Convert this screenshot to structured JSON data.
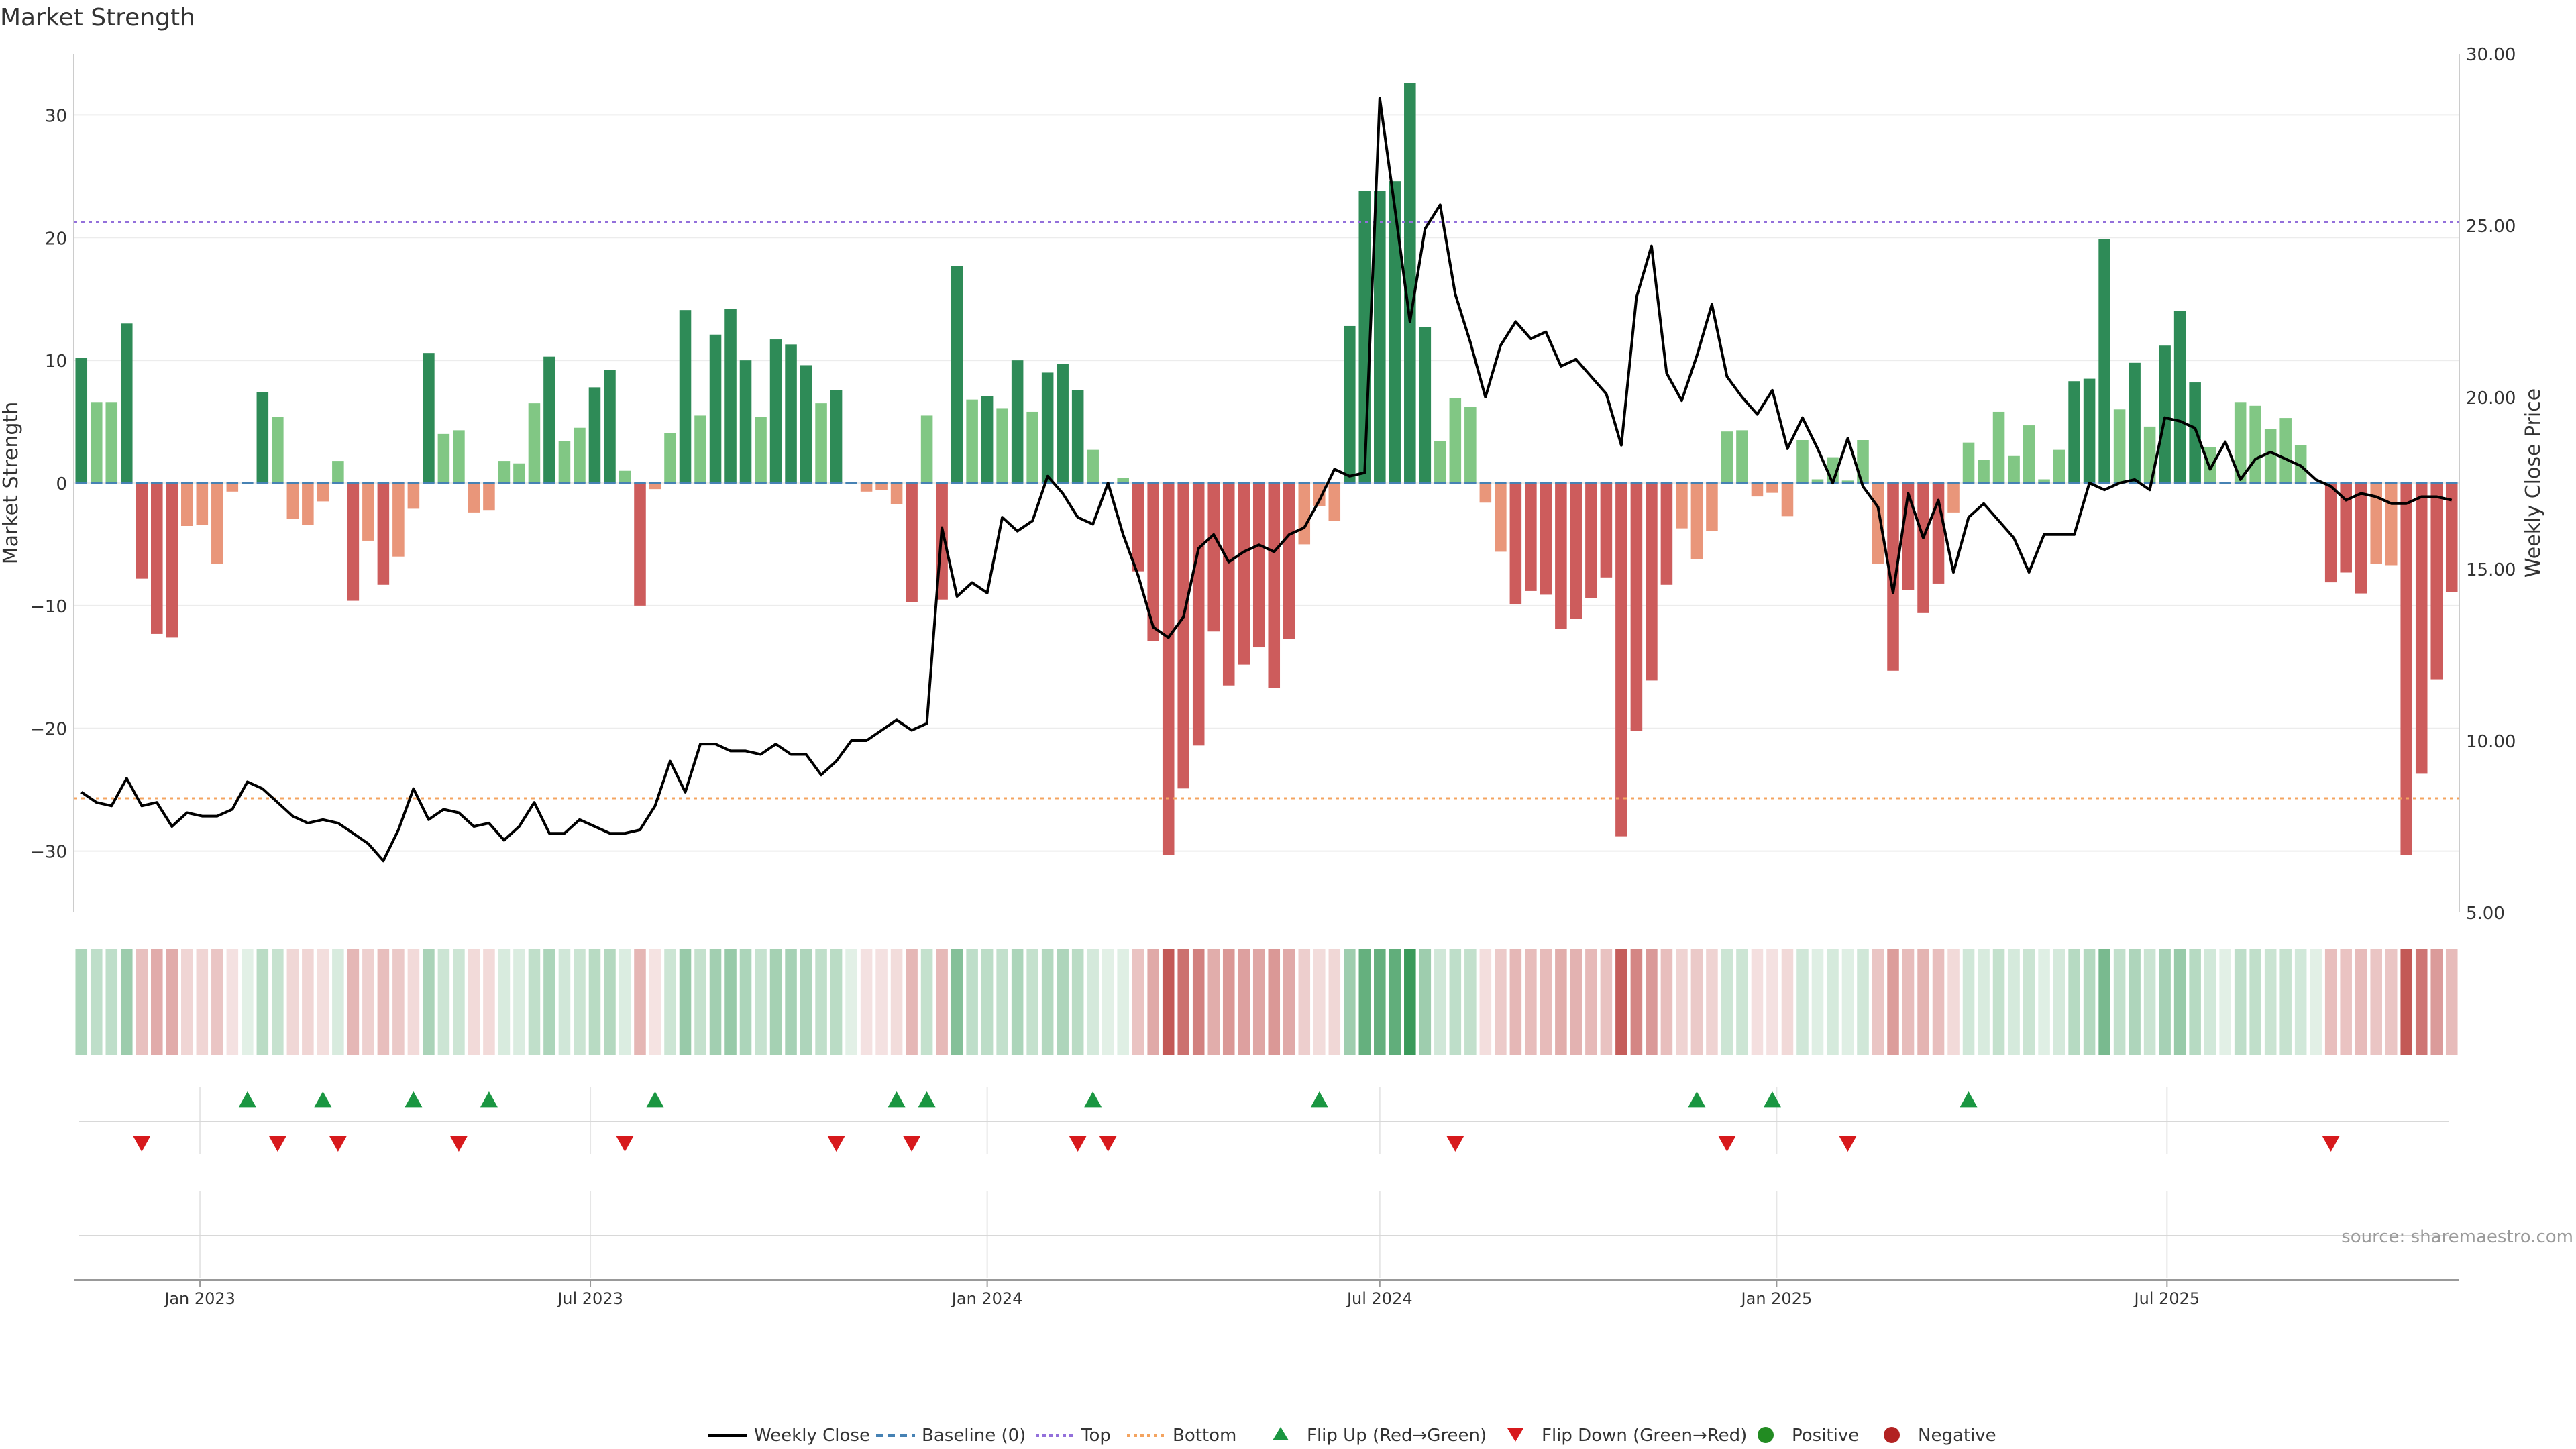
{
  "chart_data": {
    "type": "bar",
    "title": "Market Strength",
    "ylabel": "Market Strength",
    "y2label": "Weekly Close Price",
    "ylim": [
      -35,
      35
    ],
    "y2lim": [
      5,
      30
    ],
    "yticks": [
      30,
      20,
      10,
      0,
      -10,
      -20,
      -30
    ],
    "y2ticks": [
      "30.00",
      "25.00",
      "20.00",
      "15.00",
      "10.00",
      "5.00"
    ],
    "x_dates_start": "2022-11-07",
    "x_step_days": 7,
    "x_tick_labels": [
      {
        "label": "Jan 2023",
        "date": "2023-01-01"
      },
      {
        "label": "Jul 2023",
        "date": "2023-07-01"
      },
      {
        "label": "Jan 2024",
        "date": "2024-01-01"
      },
      {
        "label": "Jul 2024",
        "date": "2024-07-01"
      },
      {
        "label": "Jan 2025",
        "date": "2025-01-01"
      },
      {
        "label": "Jul 2025",
        "date": "2025-07-01"
      }
    ],
    "top_line": 21.3,
    "bottom_line": -25.7,
    "strength": [
      10.2,
      6.6,
      6.6,
      13.0,
      -7.8,
      -12.3,
      -12.6,
      -3.5,
      -3.4,
      -6.6,
      -0.7,
      0,
      7.4,
      5.4,
      -2.9,
      -3.4,
      -1.5,
      1.8,
      -9.6,
      -4.7,
      -8.3,
      -6.0,
      -2.1,
      10.6,
      4.0,
      4.3,
      -2.4,
      -2.2,
      1.8,
      1.6,
      6.5,
      10.3,
      3.4,
      4.5,
      7.8,
      9.2,
      1.0,
      -10.0,
      -0.5,
      4.1,
      14.1,
      5.5,
      12.1,
      14.2,
      10.0,
      5.4,
      11.7,
      11.3,
      9.6,
      6.5,
      7.6,
      0,
      -0.7,
      -0.6,
      -1.7,
      -9.7,
      5.5,
      -9.5,
      17.7,
      6.8,
      7.1,
      6.1,
      10.0,
      5.8,
      9.0,
      9.7,
      7.6,
      2.7,
      0,
      0.4,
      -7.2,
      -12.9,
      -30.3,
      -24.9,
      -21.4,
      -12.1,
      -16.5,
      -14.8,
      -13.4,
      -16.7,
      -12.7,
      -5.0,
      -1.9,
      -3.1,
      12.8,
      23.8,
      23.8,
      24.6,
      32.6,
      12.7,
      3.4,
      6.9,
      6.2,
      -1.6,
      -5.6,
      -9.9,
      -8.8,
      -9.1,
      -11.9,
      -11.1,
      -9.4,
      -7.7,
      -28.8,
      -20.2,
      -16.1,
      -8.3,
      -3.7,
      -6.2,
      -3.9,
      4.2,
      4.3,
      -1.1,
      -0.8,
      -2.7,
      3.5,
      0.3,
      2.1,
      0.2,
      3.5,
      -6.6,
      -15.3,
      -8.7,
      -10.6,
      -8.2,
      -2.4,
      3.3,
      1.9,
      5.8,
      2.2,
      4.7,
      0.3,
      2.7,
      8.3,
      8.5,
      19.9,
      6.0,
      9.8,
      4.6,
      11.2,
      14.0,
      8.2,
      2.9,
      0,
      6.6,
      6.3,
      4.4,
      5.3,
      3.1,
      0,
      -8.1,
      -7.3,
      -9.0,
      -6.6,
      -6.7,
      -30.3,
      -23.7,
      -16.0,
      -8.9
    ],
    "close": [
      8.5,
      8.2,
      8.1,
      8.9,
      8.1,
      8.2,
      7.5,
      7.9,
      7.8,
      7.8,
      8.0,
      8.8,
      8.6,
      8.2,
      7.8,
      7.6,
      7.7,
      7.6,
      7.3,
      7.0,
      6.5,
      7.4,
      8.6,
      7.7,
      8.0,
      7.9,
      7.5,
      7.6,
      7.1,
      7.5,
      8.2,
      7.3,
      7.3,
      7.7,
      7.5,
      7.3,
      7.3,
      7.4,
      8.1,
      9.4,
      8.5,
      9.9,
      9.9,
      9.7,
      9.7,
      9.6,
      9.9,
      9.6,
      9.6,
      9.0,
      9.4,
      10.0,
      10.0,
      10.3,
      10.6,
      10.3,
      10.5,
      16.2,
      14.2,
      14.6,
      14.3,
      16.5,
      16.1,
      16.4,
      17.7,
      17.2,
      16.5,
      16.3,
      17.5,
      16.0,
      14.8,
      13.3,
      13.0,
      13.6,
      15.6,
      16.0,
      15.2,
      15.5,
      15.7,
      15.5,
      16.0,
      16.2,
      17.0,
      17.9,
      17.7,
      17.8,
      28.7,
      25.5,
      22.2,
      24.9,
      25.6,
      23.0,
      21.6,
      20.0,
      21.5,
      22.2,
      21.7,
      21.9,
      20.9,
      21.1,
      20.6,
      20.1,
      18.6,
      22.9,
      24.4,
      20.7,
      19.9,
      21.2,
      22.7,
      20.6,
      20.0,
      19.5,
      20.2,
      18.5,
      19.4,
      18.5,
      17.5,
      18.8,
      17.4,
      16.8,
      14.3,
      17.2,
      15.9,
      17.0,
      14.9,
      16.5,
      16.9,
      16.4,
      15.9,
      14.9,
      16.0,
      16.0,
      16.0,
      17.5,
      17.3,
      17.5,
      17.6,
      17.3,
      19.4,
      19.3,
      19.1,
      17.9,
      18.7,
      17.6,
      18.2,
      18.4,
      18.2,
      18.0,
      17.6,
      17.4,
      17.0,
      17.2,
      17.1,
      16.9,
      16.9,
      17.1,
      17.1,
      17.0
    ],
    "flip_up_index": [
      11,
      16,
      22,
      27,
      38,
      54,
      56,
      67,
      82,
      107,
      112,
      125
    ],
    "flip_down_index": [
      4,
      13,
      17,
      25,
      36,
      50,
      55,
      66,
      68,
      91,
      109,
      117,
      149
    ],
    "legend": [
      "Weekly Close",
      "Baseline (0)",
      "Top",
      "Bottom",
      "Flip Up (Red→Green)",
      "Flip Down (Green→Red)",
      "Positive",
      "Negative"
    ],
    "legend_placement": "bottom-center",
    "grid": true
  },
  "source": "source: sharemaestro.com",
  "colors": {
    "strong_green": "#2e8b57",
    "light_green": "#81c784",
    "strong_red": "#cd5c5c",
    "light_red": "#e9967a",
    "top_line": "#9370db",
    "bottom_line": "#f4a460",
    "baseline": "#4682b4",
    "close_line": "#000000",
    "flip_up": "#1a9641",
    "flip_down": "#d7191c",
    "positive": "#228b22",
    "negative": "#b22222"
  }
}
